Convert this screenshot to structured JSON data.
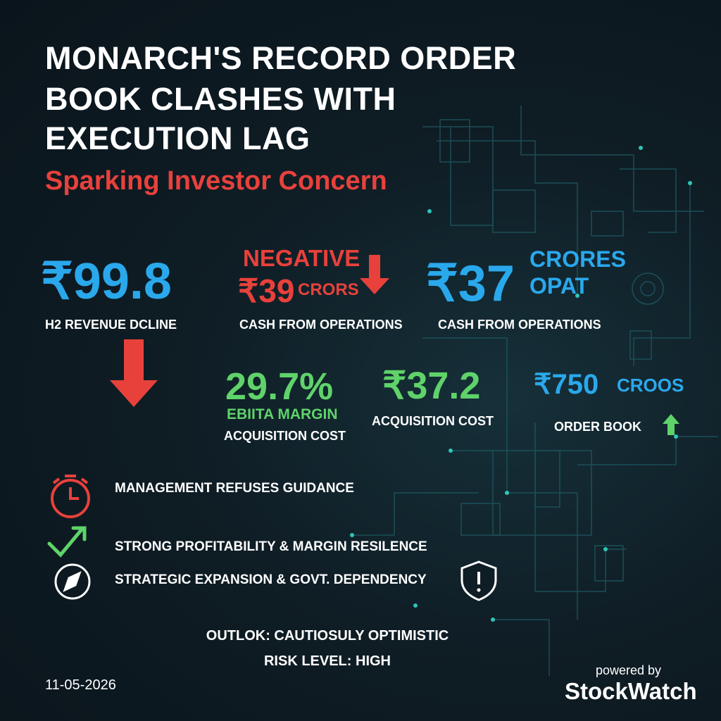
{
  "header": {
    "title_lines": [
      "MONARCH'S RECORD ORDER",
      "BOOK CLASHES WITH",
      "EXECUTION LAG"
    ],
    "subtitle": "Sparking Investor Concern"
  },
  "metrics": [
    {
      "value": "₹99.8",
      "label": "H2 REVENUE DCLINE"
    },
    {
      "note": "NEGATIVE",
      "value": "₹39",
      "unit": "CRORS",
      "label": "CASH FROM OPERATIONS"
    },
    {
      "value": "₹37",
      "unit_lines": [
        "CRORES",
        "OPAT"
      ],
      "label": "CASH FROM OPERATIONS"
    },
    {
      "value": "29.7%",
      "sublabel": "EBIITA MARGIN",
      "label": "ACQUISITION COST"
    },
    {
      "value": "₹37.2",
      "label": "ACQUISITION COST"
    },
    {
      "value": "₹750",
      "unit": "CROOS",
      "label": "ORDER BOOK"
    }
  ],
  "points": [
    "MANAGEMENT REFUSES GUIDANCE",
    "STRONG PROFITABILITY & MARGIN RESILENCE",
    "STRATEGIC EXPANSION & GOVT. DEPENDENCY"
  ],
  "outlook": {
    "outlook": "OUTLOK: CAUTIOSULY OPTIMISTIC",
    "risk": "RISK LEVEL: HIGH"
  },
  "footer": {
    "date": "11-05-2026",
    "powered_by": "powered by",
    "brand": "StockWatch"
  }
}
